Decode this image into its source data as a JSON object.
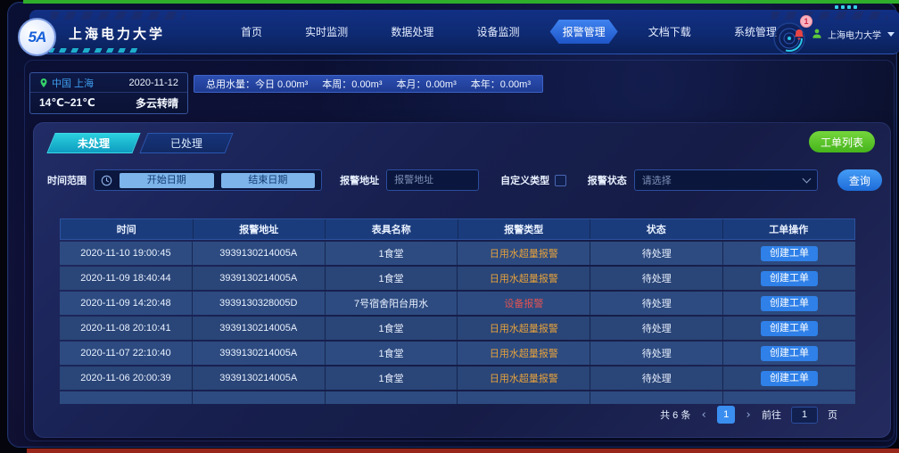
{
  "header": {
    "logo_text": "5A",
    "title": "上海电力大学",
    "nav": [
      {
        "label": "首页",
        "active": false
      },
      {
        "label": "实时监测",
        "active": false
      },
      {
        "label": "数据处理",
        "active": false
      },
      {
        "label": "设备监测",
        "active": false
      },
      {
        "label": "报警管理",
        "active": true
      },
      {
        "label": "文档下载",
        "active": false
      },
      {
        "label": "系统管理",
        "active": false
      }
    ],
    "notification_count": "1",
    "user_name": "上海电力大学"
  },
  "weather": {
    "location": "中国 上海",
    "date": "2020-11-12",
    "temperature": "14℃~21℃",
    "condition": "多云转晴"
  },
  "stats_bar": {
    "segments": [
      "总用水量：今日 0.00m³",
      "本周：0.00m³",
      "本月：0.00m³",
      "本年：0.00m³"
    ]
  },
  "tabs": [
    {
      "label": "未处理",
      "active": true
    },
    {
      "label": "已处理",
      "active": false
    }
  ],
  "worklist_button": "工单列表",
  "filters": {
    "time_range_label": "时间范围",
    "start_date_placeholder": "开始日期",
    "end_date_placeholder": "结束日期",
    "address_label": "报警地址",
    "address_placeholder": "报警地址",
    "custom_type_label": "自定义类型",
    "status_label": "报警状态",
    "status_placeholder": "请选择",
    "search_button": "查询"
  },
  "table": {
    "columns": [
      "时间",
      "报警地址",
      "表具名称",
      "报警类型",
      "状态",
      "工单操作"
    ],
    "action_label": "创建工单",
    "rows": [
      {
        "time": "2020-11-10 19:00:45",
        "address": "3939130214005A",
        "meter": "1食堂",
        "type": "日用水超量报警",
        "type_color": "orange",
        "status": "待处理"
      },
      {
        "time": "2020-11-09 18:40:44",
        "address": "3939130214005A",
        "meter": "1食堂",
        "type": "日用水超量报警",
        "type_color": "orange",
        "status": "待处理"
      },
      {
        "time": "2020-11-09 14:20:48",
        "address": "3939130328005D",
        "meter": "7号宿舍阳台用水",
        "type": "设备报警",
        "type_color": "red",
        "status": "待处理"
      },
      {
        "time": "2020-11-08 20:10:41",
        "address": "3939130214005A",
        "meter": "1食堂",
        "type": "日用水超量报警",
        "type_color": "orange",
        "status": "待处理"
      },
      {
        "time": "2020-11-07 22:10:40",
        "address": "3939130214005A",
        "meter": "1食堂",
        "type": "日用水超量报警",
        "type_color": "orange",
        "status": "待处理"
      },
      {
        "time": "2020-11-06 20:00:39",
        "address": "3939130214005A",
        "meter": "1食堂",
        "type": "日用水超量报警",
        "type_color": "orange",
        "status": "待处理"
      }
    ]
  },
  "pagination": {
    "total_text": "共 6 条",
    "prev_arrow": "‹",
    "current_page": "1",
    "next_arrow": "›",
    "goto_label": "前往",
    "goto_value": "1",
    "page_suffix": "页"
  },
  "colors": {
    "alarm_orange": "#e6a23c",
    "alarm_red": "#e25353",
    "button_green": "#52c41a",
    "button_blue": "#2f80e8",
    "tab_teal": "#18b8d0",
    "header_blue": "#0e2a72"
  }
}
